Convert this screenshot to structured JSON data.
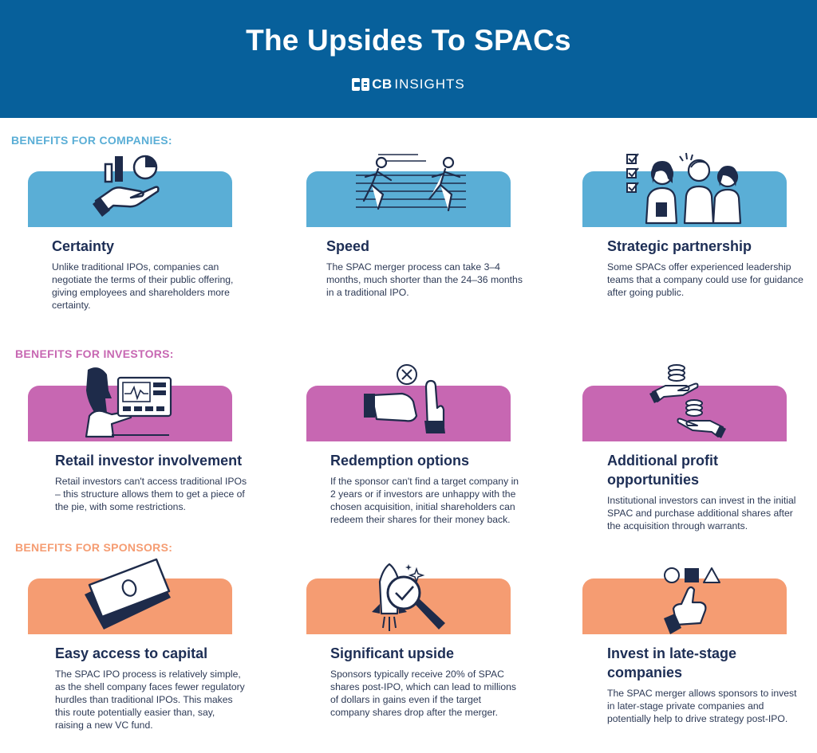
{
  "header": {
    "title": "The Upsides To SPACs",
    "brand_bold": "CB",
    "brand_rest": "INSIGHTS"
  },
  "colors": {
    "header_bg": "#07609b",
    "companies": "#5aaed6",
    "investors": "#c767b2",
    "sponsors": "#f59c72",
    "title_text": "#1d2e55",
    "illustration_ink": "#1e2b4a"
  },
  "sections": [
    {
      "label": "BENEFITS FOR COMPANIES:",
      "cards": [
        {
          "icon": "hand-holding-chart-icon",
          "title": "Certainty",
          "desc": "Unlike traditional IPOs, companies can negotiate the terms of their public offering, giving employees and shareholders more certainty."
        },
        {
          "icon": "runners-icon",
          "title": "Speed",
          "desc": "The SPAC merger process can take 3–4 months, much shorter than the 24–36 months in a traditional IPO."
        },
        {
          "icon": "team-checklist-icon",
          "title": "Strategic partnership",
          "desc": "Some SPACs offer experienced leadership teams that a company could use for guidance after going public."
        }
      ]
    },
    {
      "label": "BENEFITS FOR INVESTORS:",
      "cards": [
        {
          "icon": "investor-monitor-icon",
          "title": "Retail investor involvement",
          "desc": "Retail investors can't access traditional IPOs – this structure allows them to get a piece of the pie, with some restrictions."
        },
        {
          "icon": "hand-refusal-icon",
          "title": "Redemption options",
          "desc": "If the sponsor can't find a target company in 2 years or if investors are unhappy with the chosen acquisition, initial shareholders can redeem their shares for their money back."
        },
        {
          "icon": "coins-exchange-icon",
          "title": "Additional profit opportunities",
          "desc": "Institutional investors can invest in the initial SPAC and purchase additional shares after the acquisition through warrants."
        }
      ]
    },
    {
      "label": "BENEFITS FOR SPONSORS:",
      "cards": [
        {
          "icon": "banknote-icon",
          "title": "Easy access to capital",
          "desc": "The SPAC IPO process is relatively simple, as the shell company faces fewer regulatory hurdles than traditional IPOs. This makes this route potentially easier than, say, raising a new VC fund."
        },
        {
          "icon": "rocket-magnifier-icon",
          "title": "Significant upside",
          "desc": "Sponsors typically receive 20% of SPAC shares post-IPO, which can lead to millions of dollars in gains even if the target company shares drop after the merger."
        },
        {
          "icon": "hand-pointing-shapes-icon",
          "title": "Invest in late-stage companies",
          "desc": "The SPAC merger allows sponsors to invest in later-stage private companies and potentially help to drive strategy post-IPO."
        }
      ]
    }
  ]
}
